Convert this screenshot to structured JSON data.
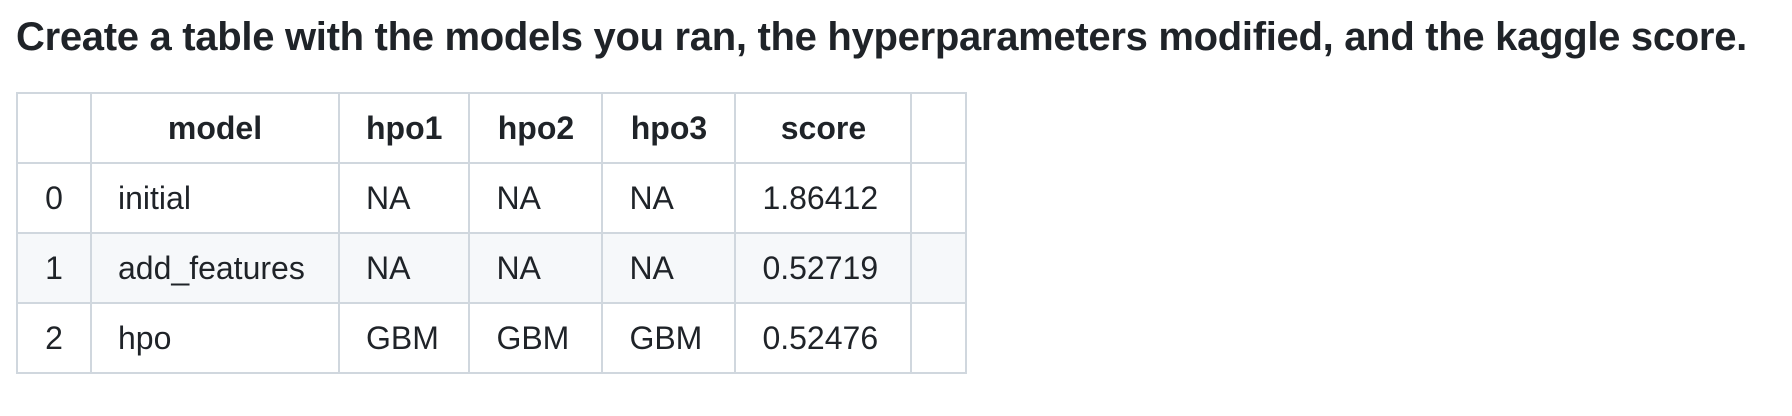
{
  "heading": "Create a table with the models you ran, the hyperparameters modified, and the kaggle score.",
  "table": {
    "columns": [
      "",
      "model",
      "hpo1",
      "hpo2",
      "hpo3",
      "score",
      ""
    ],
    "rows": [
      [
        "0",
        "initial",
        "NA",
        "NA",
        "NA",
        "1.86412",
        ""
      ],
      [
        "1",
        "add_features",
        "NA",
        "NA",
        "NA",
        "0.52719",
        ""
      ],
      [
        "2",
        "hpo",
        "GBM",
        "GBM",
        "GBM",
        "0.52476",
        ""
      ]
    ]
  },
  "colors": {
    "text": "#1f2328",
    "border": "#d0d7de",
    "stripe": "#f6f8fa"
  }
}
